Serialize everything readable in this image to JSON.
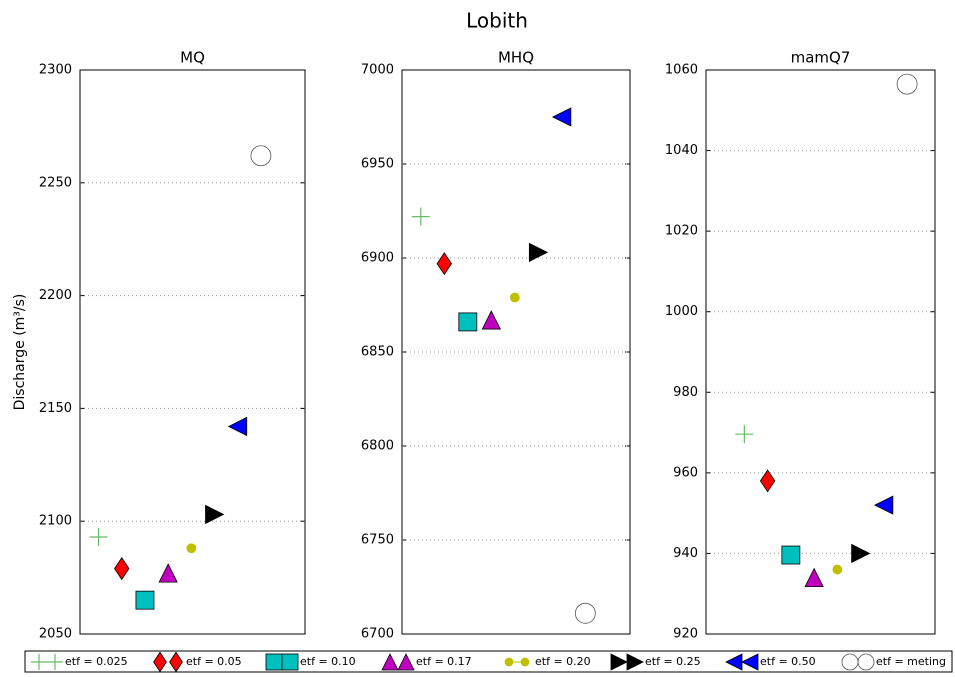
{
  "title": "Lobith",
  "ylabel": "Discharge (m³/s)",
  "chart_data": [
    {
      "type": "scatter",
      "title": "MQ",
      "xlim": [
        0.2,
        9.9
      ],
      "ylim": [
        2050,
        2300
      ],
      "yticks": [
        2050,
        2100,
        2150,
        2200,
        2250,
        2300
      ],
      "grid": true,
      "series": [
        {
          "name": "etf = 0.025",
          "marker": "plus",
          "color": "#66bb66",
          "x": [
            1
          ],
          "values": [
            2093
          ]
        },
        {
          "name": "etf = 0.05",
          "marker": "diamond",
          "color": "#ff0000",
          "x": [
            2
          ],
          "values": [
            2079
          ]
        },
        {
          "name": "etf = 0.10",
          "marker": "square",
          "color": "#00bfbf",
          "x": [
            3
          ],
          "values": [
            2065
          ]
        },
        {
          "name": "etf = 0.17",
          "marker": "triangle-up",
          "color": "#bf00bf",
          "x": [
            4
          ],
          "values": [
            2077
          ]
        },
        {
          "name": "etf = 0.20",
          "marker": "dot",
          "color": "#bfbf00",
          "x": [
            5
          ],
          "values": [
            2088
          ]
        },
        {
          "name": "etf = 0.25",
          "marker": "triangle-right",
          "color": "#000000",
          "x": [
            6
          ],
          "values": [
            2103
          ]
        },
        {
          "name": "etf = 0.50",
          "marker": "triangle-left",
          "color": "#0000ff",
          "x": [
            7
          ],
          "values": [
            2142
          ]
        },
        {
          "name": "etf = meting",
          "marker": "circle",
          "color": "#ffffff",
          "x": [
            8
          ],
          "values": [
            2262
          ]
        }
      ]
    },
    {
      "type": "scatter",
      "title": "MHQ",
      "xlim": [
        0.2,
        9.9
      ],
      "ylim": [
        6700,
        7000
      ],
      "yticks": [
        6700,
        6750,
        6800,
        6850,
        6900,
        6950,
        7000
      ],
      "grid": true,
      "series": [
        {
          "name": "etf = 0.025",
          "marker": "plus",
          "color": "#66bb66",
          "x": [
            1
          ],
          "values": [
            6922
          ]
        },
        {
          "name": "etf = 0.05",
          "marker": "diamond",
          "color": "#ff0000",
          "x": [
            2
          ],
          "values": [
            6897
          ]
        },
        {
          "name": "etf = 0.10",
          "marker": "square",
          "color": "#00bfbf",
          "x": [
            3
          ],
          "values": [
            6866
          ]
        },
        {
          "name": "etf = 0.17",
          "marker": "triangle-up",
          "color": "#bf00bf",
          "x": [
            4
          ],
          "values": [
            6867
          ]
        },
        {
          "name": "etf = 0.20",
          "marker": "dot",
          "color": "#bfbf00",
          "x": [
            5
          ],
          "values": [
            6879
          ]
        },
        {
          "name": "etf = 0.25",
          "marker": "triangle-right",
          "color": "#000000",
          "x": [
            6
          ],
          "values": [
            6903
          ]
        },
        {
          "name": "etf = 0.50",
          "marker": "triangle-left",
          "color": "#0000ff",
          "x": [
            7
          ],
          "values": [
            6975
          ]
        },
        {
          "name": "etf = meting",
          "marker": "circle",
          "color": "#ffffff",
          "x": [
            8
          ],
          "values": [
            6711
          ]
        }
      ]
    },
    {
      "type": "scatter",
      "title": "mamQ7",
      "xlim": [
        -0.65,
        9.2
      ],
      "ylim": [
        920,
        1060
      ],
      "yticks": [
        920,
        940,
        960,
        980,
        1000,
        1020,
        1040,
        1060
      ],
      "grid": true,
      "series": [
        {
          "name": "etf = 0.025",
          "marker": "plus",
          "color": "#66bb66",
          "x": [
            1
          ],
          "values": [
            969.6
          ]
        },
        {
          "name": "etf = 0.05",
          "marker": "diamond",
          "color": "#ff0000",
          "x": [
            2
          ],
          "values": [
            958
          ]
        },
        {
          "name": "etf = 0.10",
          "marker": "square",
          "color": "#00bfbf",
          "x": [
            3
          ],
          "values": [
            939.6
          ]
        },
        {
          "name": "etf = 0.17",
          "marker": "triangle-up",
          "color": "#bf00bf",
          "x": [
            4
          ],
          "values": [
            934
          ]
        },
        {
          "name": "etf = 0.20",
          "marker": "dot",
          "color": "#bfbf00",
          "x": [
            5
          ],
          "values": [
            936
          ]
        },
        {
          "name": "etf = 0.25",
          "marker": "triangle-right",
          "color": "#000000",
          "x": [
            6
          ],
          "values": [
            940
          ]
        },
        {
          "name": "etf = 0.50",
          "marker": "triangle-left",
          "color": "#0000ff",
          "x": [
            7
          ],
          "values": [
            952
          ]
        },
        {
          "name": "etf = meting",
          "marker": "circle",
          "color": "#ffffff",
          "x": [
            8
          ],
          "values": [
            1056.5
          ]
        }
      ]
    }
  ]
}
